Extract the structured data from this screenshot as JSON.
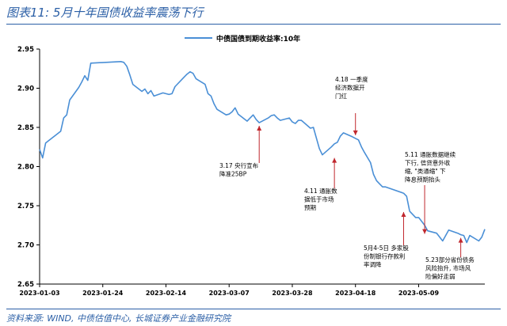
{
  "figure": {
    "title": "图表11:  5月十年国债收益率震荡下行",
    "source": "资料来源: WIND, 中债估值中心, 长城证券产业金融研究院"
  },
  "colors": {
    "line": "#4a8fd6",
    "arrow": "#c0272d",
    "axis": "#000000",
    "title": "#2b5fa6"
  },
  "chart_data": {
    "type": "line",
    "xlabel": "",
    "ylabel": "",
    "ylim": [
      2.65,
      2.95
    ],
    "yticks": [
      "2.65",
      "2.70",
      "2.75",
      "2.80",
      "2.85",
      "2.90",
      "2.95"
    ],
    "xticks": [
      "2023-01-03",
      "2023-01-24",
      "2023-02-14",
      "2023-03-07",
      "2023-03-28",
      "2023-04-18",
      "2023-05-09"
    ],
    "grid": false,
    "legend": "top-center",
    "x_start": "2023-01-03",
    "x_end": "2023-05-31",
    "series": [
      {
        "name": "中债国债到期收益率:10年",
        "x": [
          "2023-01-03",
          "2023-01-04",
          "2023-01-05",
          "2023-01-06",
          "2023-01-09",
          "2023-01-10",
          "2023-01-11",
          "2023-01-12",
          "2023-01-13",
          "2023-01-16",
          "2023-01-17",
          "2023-01-18",
          "2023-01-19",
          "2023-01-20",
          "2023-01-30",
          "2023-01-31",
          "2023-02-01",
          "2023-02-02",
          "2023-02-03",
          "2023-02-06",
          "2023-02-07",
          "2023-02-08",
          "2023-02-09",
          "2023-02-10",
          "2023-02-13",
          "2023-02-14",
          "2023-02-15",
          "2023-02-16",
          "2023-02-17",
          "2023-02-20",
          "2023-02-21",
          "2023-02-22",
          "2023-02-23",
          "2023-02-24",
          "2023-02-27",
          "2023-02-28",
          "2023-03-01",
          "2023-03-02",
          "2023-03-03",
          "2023-03-06",
          "2023-03-07",
          "2023-03-08",
          "2023-03-09",
          "2023-03-10",
          "2023-03-13",
          "2023-03-14",
          "2023-03-15",
          "2023-03-16",
          "2023-03-17",
          "2023-03-20",
          "2023-03-21",
          "2023-03-22",
          "2023-03-23",
          "2023-03-24",
          "2023-03-27",
          "2023-03-28",
          "2023-03-29",
          "2023-03-30",
          "2023-03-31",
          "2023-04-03",
          "2023-04-04",
          "2023-04-06",
          "2023-04-07",
          "2023-04-10",
          "2023-04-11",
          "2023-04-12",
          "2023-04-13",
          "2023-04-14",
          "2023-04-17",
          "2023-04-18",
          "2023-04-19",
          "2023-04-20",
          "2023-04-21",
          "2023-04-23",
          "2023-04-24",
          "2023-04-25",
          "2023-04-26",
          "2023-04-27",
          "2023-04-28",
          "2023-05-04",
          "2023-05-05",
          "2023-05-06",
          "2023-05-08",
          "2023-05-09",
          "2023-05-10",
          "2023-05-11",
          "2023-05-12",
          "2023-05-15",
          "2023-05-16",
          "2023-05-17",
          "2023-05-18",
          "2023-05-19",
          "2023-05-22",
          "2023-05-23",
          "2023-05-24",
          "2023-05-25",
          "2023-05-26",
          "2023-05-29",
          "2023-05-30",
          "2023-05-31"
        ],
        "values": [
          2.822,
          2.811,
          2.83,
          2.833,
          2.842,
          2.845,
          2.862,
          2.866,
          2.885,
          2.901,
          2.908,
          2.916,
          2.91,
          2.932,
          2.934,
          2.933,
          2.928,
          2.917,
          2.905,
          2.896,
          2.899,
          2.893,
          2.897,
          2.89,
          2.894,
          2.893,
          2.892,
          2.893,
          2.902,
          2.914,
          2.918,
          2.921,
          2.919,
          2.912,
          2.905,
          2.893,
          2.89,
          2.88,
          2.873,
          2.866,
          2.867,
          2.87,
          2.875,
          2.867,
          2.858,
          2.862,
          2.866,
          2.86,
          2.856,
          2.862,
          2.865,
          2.866,
          2.862,
          2.859,
          2.862,
          2.857,
          2.855,
          2.859,
          2.859,
          2.849,
          2.85,
          2.823,
          2.815,
          2.825,
          2.829,
          2.831,
          2.839,
          2.843,
          2.838,
          2.836,
          2.834,
          2.825,
          2.818,
          2.805,
          2.79,
          2.782,
          2.778,
          2.774,
          2.774,
          2.766,
          2.762,
          2.743,
          2.735,
          2.735,
          2.73,
          2.725,
          2.718,
          2.715,
          2.71,
          2.705,
          2.712,
          2.719,
          2.715,
          2.713,
          2.712,
          2.703,
          2.712,
          2.705,
          2.71,
          2.72
        ]
      }
    ],
    "annotations": [
      {
        "lines": [
          "3.17 央行宣布",
          "降准25BP"
        ],
        "date": "2023-03-17",
        "value": 2.856,
        "side": "below"
      },
      {
        "lines": [
          "4.11 通胀数",
          "据低于市场",
          "预期"
        ],
        "date": "2023-04-11",
        "value": 2.815,
        "side": "below"
      },
      {
        "lines": [
          "4.18 一季度",
          "经济数据开",
          "门红"
        ],
        "date": "2023-04-18",
        "value": 2.836,
        "side": "above"
      },
      {
        "lines": [
          "5月4-5日 多家股",
          "份制银行存款利",
          "率调降"
        ],
        "date": "2023-05-04",
        "value": 2.746,
        "side": "below"
      },
      {
        "lines": [
          "5.11 通胀数据继续",
          "下行, 信贷意外收",
          "缩, \"类通缩\" 下",
          "降息预期抬头"
        ],
        "date": "2023-05-11",
        "value": 2.71,
        "side": "above"
      },
      {
        "lines": [
          "5.23部分省份债务",
          "风险抬升, 市场风",
          "险偏好走弱"
        ],
        "date": "2023-05-23",
        "value": 2.713,
        "side": "below"
      }
    ]
  }
}
